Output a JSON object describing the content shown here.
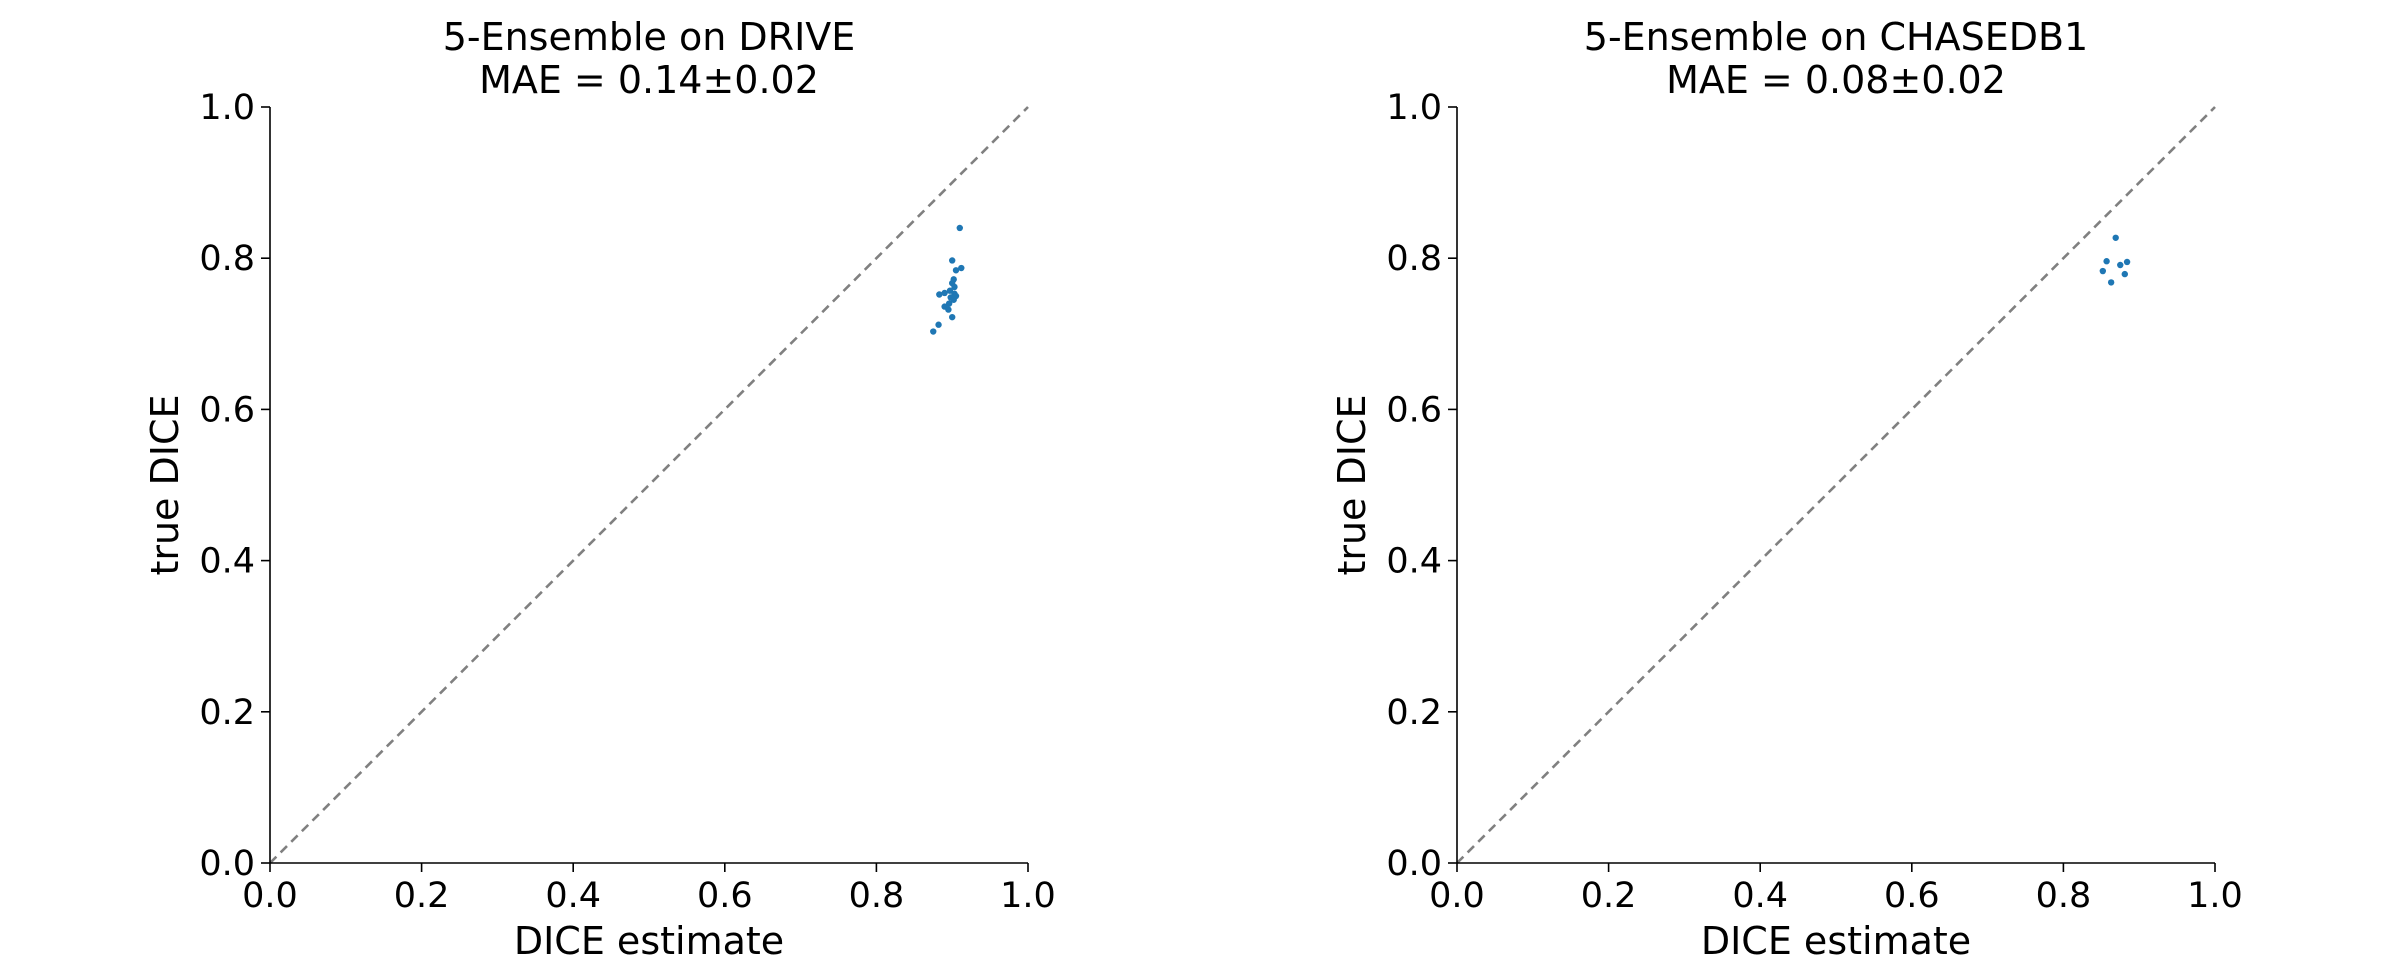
{
  "chart_data": [
    {
      "type": "scatter",
      "title": "5-Ensemble on DRIVE\nMAE = 0.14±0.02",
      "xlabel": "DICE estimate",
      "ylabel": "true DICE",
      "xlim": [
        0.0,
        1.0
      ],
      "ylim": [
        0.0,
        1.0
      ],
      "xticks": [
        "0.0",
        "0.2",
        "0.4",
        "0.6",
        "0.8",
        "1.0"
      ],
      "yticks": [
        "0.0",
        "0.2",
        "0.4",
        "0.6",
        "0.8",
        "1.0"
      ],
      "reference_line": "y = x",
      "grid": false,
      "color": "#1f77b4",
      "points": [
        [
          0.91,
          0.84
        ],
        [
          0.9,
          0.797
        ],
        [
          0.912,
          0.787
        ],
        [
          0.905,
          0.784
        ],
        [
          0.902,
          0.772
        ],
        [
          0.9,
          0.767
        ],
        [
          0.903,
          0.762
        ],
        [
          0.897,
          0.757
        ],
        [
          0.89,
          0.754
        ],
        [
          0.903,
          0.753
        ],
        [
          0.883,
          0.752
        ],
        [
          0.905,
          0.75
        ],
        [
          0.898,
          0.748
        ],
        [
          0.902,
          0.745
        ],
        [
          0.896,
          0.74
        ],
        [
          0.89,
          0.736
        ],
        [
          0.895,
          0.732
        ],
        [
          0.9,
          0.722
        ],
        [
          0.882,
          0.712
        ],
        [
          0.875,
          0.703
        ]
      ]
    },
    {
      "type": "scatter",
      "title": "5-Ensemble on CHASEDB1\nMAE = 0.08±0.02",
      "xlabel": "DICE estimate",
      "ylabel": "true DICE",
      "xlim": [
        0.0,
        1.0
      ],
      "ylim": [
        0.0,
        1.0
      ],
      "xticks": [
        "0.0",
        "0.2",
        "0.4",
        "0.6",
        "0.8",
        "1.0"
      ],
      "yticks": [
        "0.0",
        "0.2",
        "0.4",
        "0.6",
        "0.8",
        "1.0"
      ],
      "reference_line": "y = x",
      "grid": false,
      "color": "#1f77b4",
      "points": [
        [
          0.869,
          0.827
        ],
        [
          0.857,
          0.796
        ],
        [
          0.884,
          0.795
        ],
        [
          0.875,
          0.791
        ],
        [
          0.852,
          0.783
        ],
        [
          0.881,
          0.779
        ],
        [
          0.863,
          0.768
        ]
      ]
    }
  ]
}
